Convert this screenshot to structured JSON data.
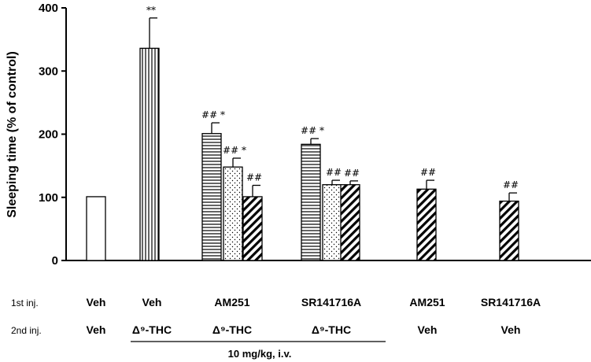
{
  "chart_data": {
    "type": "bar",
    "ylabel": "Sleeping time (% of control)",
    "ylim": [
      0,
      400
    ],
    "yticks": [
      0,
      100,
      200,
      300,
      400
    ],
    "bars": [
      {
        "group": 0,
        "value": 101,
        "error": 0,
        "pattern": "open",
        "sig": ""
      },
      {
        "group": 1,
        "value": 336,
        "error": 48,
        "pattern": "vertical",
        "sig": "**"
      },
      {
        "group": 2,
        "value": 201,
        "error": 17,
        "pattern": "horizontal",
        "sig": "## *"
      },
      {
        "group": 2,
        "value": 148,
        "error": 14,
        "pattern": "dots",
        "sig": "## *"
      },
      {
        "group": 2,
        "value": 101,
        "error": 18,
        "pattern": "diagonal",
        "sig": "##"
      },
      {
        "group": 3,
        "value": 184,
        "error": 9,
        "pattern": "horizontal",
        "sig": "## *"
      },
      {
        "group": 3,
        "value": 120,
        "error": 7,
        "pattern": "dots",
        "sig": "##"
      },
      {
        "group": 3,
        "value": 120,
        "error": 6,
        "pattern": "diagonal",
        "sig": "##"
      },
      {
        "group": 4,
        "value": 113,
        "error": 14,
        "pattern": "diagonal",
        "sig": "##"
      },
      {
        "group": 5,
        "value": 94,
        "error": 13,
        "pattern": "diagonal",
        "sig": "##"
      }
    ],
    "first_injection_label": "1st inj.",
    "second_injection_label": "2nd inj.",
    "first_injection": [
      "Veh",
      "Veh",
      "AM251",
      "SR141716A",
      "AM251",
      "SR141716A"
    ],
    "second_injection": [
      "Veh",
      "Δ⁹-THC",
      "Δ⁹-THC",
      "Δ⁹-THC",
      "Veh",
      "Veh"
    ],
    "dose_note": "10 mg/kg, i.v."
  }
}
